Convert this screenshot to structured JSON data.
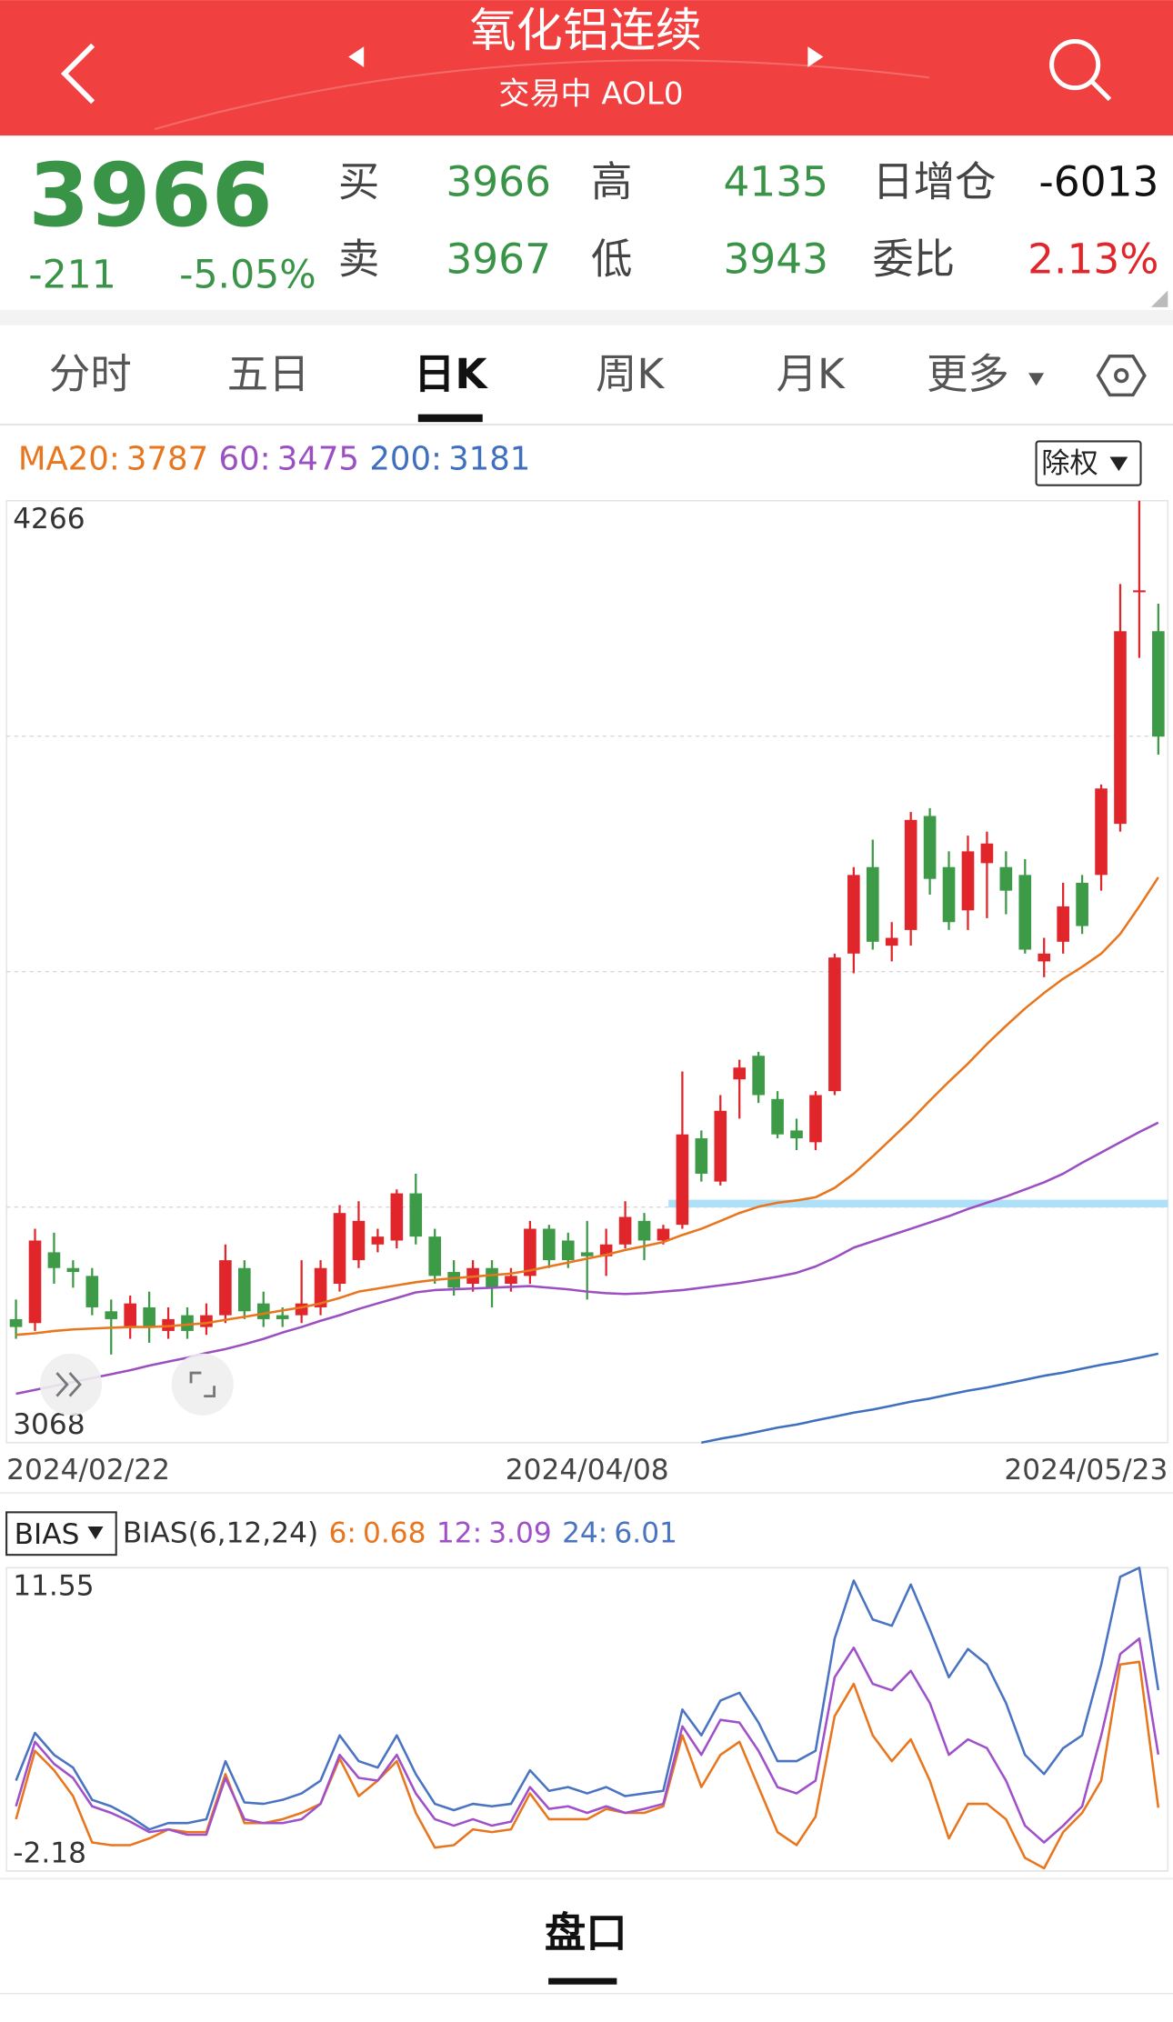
{
  "header": {
    "title": "氧化铝连续",
    "subtitle": "交易中 AOL0"
  },
  "quote": {
    "price": 3966,
    "change": -211,
    "change_pct": "-5.05%",
    "color": "#3a9447",
    "fields": [
      {
        "label": "买",
        "value": 3966,
        "color": "#3a9447"
      },
      {
        "label": "卖",
        "value": 3967,
        "color": "#3a9447"
      },
      {
        "label": "高",
        "value": 4135,
        "color": "#3a9447"
      },
      {
        "label": "低",
        "value": 3943,
        "color": "#3a9447"
      },
      {
        "label": "日增仓",
        "value": -6013,
        "color": "#111111"
      },
      {
        "label": "委比",
        "value": "2.13%",
        "color": "#e0262b"
      }
    ]
  },
  "tabs": [
    "分时",
    "五日",
    "日K",
    "周K",
    "月K",
    "更多"
  ],
  "active_tab": 2,
  "adjust_button": "除权",
  "chart_data": [
    {
      "type": "candlestick",
      "open": [
        3225,
        3220,
        3310,
        3290,
        3280,
        3235,
        3215,
        3240,
        3210,
        3230,
        3215,
        3230,
        3290,
        3245,
        3230,
        3230,
        3240,
        3270,
        3300,
        3320,
        3325,
        3385,
        3330,
        3285,
        3270,
        3290,
        3270,
        3280,
        3340,
        3325,
        3310,
        3305,
        3320,
        3350,
        3325,
        3345,
        3455,
        3400,
        3530,
        3560,
        3505,
        3465,
        3450,
        3515,
        3690,
        3800,
        3700,
        3720,
        3865,
        3800,
        3745,
        3805,
        3800,
        3790,
        3680,
        3705,
        3780,
        3790,
        3855,
        4150,
        4100
      ],
      "high": [
        3250,
        3340,
        3335,
        3300,
        3290,
        3250,
        3255,
        3260,
        3240,
        3240,
        3245,
        3320,
        3300,
        3260,
        3240,
        3300,
        3300,
        3370,
        3375,
        3340,
        3390,
        3410,
        3340,
        3300,
        3300,
        3300,
        3290,
        3350,
        3345,
        3335,
        3350,
        3340,
        3375,
        3360,
        3345,
        3540,
        3465,
        3510,
        3555,
        3565,
        3515,
        3480,
        3515,
        3690,
        3800,
        3835,
        3730,
        3870,
        3875,
        3820,
        3840,
        3845,
        3820,
        3810,
        3710,
        3780,
        3790,
        3905,
        4160,
        4266,
        4135
      ],
      "low": [
        3200,
        3210,
        3270,
        3265,
        3230,
        3180,
        3200,
        3195,
        3200,
        3200,
        3205,
        3220,
        3225,
        3215,
        3215,
        3220,
        3230,
        3260,
        3290,
        3310,
        3315,
        3320,
        3270,
        3255,
        3260,
        3240,
        3260,
        3270,
        3290,
        3290,
        3250,
        3280,
        3315,
        3300,
        3320,
        3340,
        3400,
        3395,
        3480,
        3500,
        3455,
        3440,
        3440,
        3510,
        3665,
        3695,
        3680,
        3700,
        3765,
        3720,
        3720,
        3735,
        3740,
        3690,
        3660,
        3690,
        3715,
        3770,
        3845,
        4066,
        3943
      ],
      "close": [
        3215,
        3325,
        3290,
        3285,
        3240,
        3225,
        3245,
        3215,
        3225,
        3210,
        3230,
        3300,
        3235,
        3225,
        3225,
        3245,
        3290,
        3360,
        3350,
        3330,
        3385,
        3330,
        3280,
        3265,
        3290,
        3265,
        3280,
        3340,
        3300,
        3300,
        3305,
        3320,
        3355,
        3325,
        3340,
        3460,
        3410,
        3490,
        3545,
        3510,
        3460,
        3455,
        3510,
        3685,
        3790,
        3705,
        3710,
        3860,
        3785,
        3730,
        3820,
        3830,
        3770,
        3695,
        3690,
        3750,
        3725,
        3900,
        4100,
        4152,
        3966
      ],
      "up_color": "#e0262b",
      "down_color": "#3d9a47",
      "series": [
        {
          "name": "MA20:",
          "color": "#e8761e",
          "values": [
            3205,
            3207,
            3210,
            3212,
            3213,
            3214,
            3215,
            3215,
            3216,
            3218,
            3220,
            3224,
            3228,
            3232,
            3236,
            3240,
            3245,
            3252,
            3260,
            3264,
            3268,
            3272,
            3275,
            3277,
            3279,
            3281,
            3283,
            3287,
            3292,
            3297,
            3302,
            3307,
            3313,
            3318,
            3323,
            3332,
            3340,
            3350,
            3360,
            3368,
            3373,
            3376,
            3380,
            3392,
            3410,
            3432,
            3455,
            3478,
            3503,
            3527,
            3550,
            3575,
            3598,
            3620,
            3640,
            3658,
            3673,
            3690,
            3715,
            3750,
            3787
          ]
        },
        {
          "name": "60:",
          "color": "#9b4fc0",
          "values": [
            3130,
            3135,
            3140,
            3145,
            3150,
            3155,
            3160,
            3166,
            3171,
            3176,
            3182,
            3187,
            3193,
            3200,
            3208,
            3215,
            3223,
            3230,
            3238,
            3245,
            3252,
            3259,
            3262,
            3263,
            3264,
            3265,
            3266,
            3267,
            3265,
            3263,
            3260,
            3258,
            3257,
            3258,
            3260,
            3262,
            3265,
            3268,
            3271,
            3275,
            3279,
            3284,
            3292,
            3303,
            3316,
            3324,
            3332,
            3340,
            3348,
            3356,
            3365,
            3373,
            3381,
            3390,
            3399,
            3410,
            3424,
            3437,
            3450,
            3463,
            3475
          ]
        },
        {
          "name": "200:",
          "color": "#3f6fbf",
          "values": [
            null,
            null,
            null,
            null,
            null,
            null,
            null,
            null,
            null,
            null,
            null,
            null,
            null,
            null,
            null,
            null,
            null,
            null,
            null,
            null,
            null,
            null,
            null,
            null,
            null,
            null,
            null,
            null,
            null,
            null,
            null,
            null,
            null,
            null,
            null,
            null,
            3068,
            3073,
            3077,
            3082,
            3087,
            3091,
            3096,
            3101,
            3106,
            3110,
            3115,
            3120,
            3124,
            3129,
            3134,
            3138,
            3143,
            3148,
            3153,
            3157,
            3162,
            3167,
            3171,
            3176,
            3181
          ]
        }
      ],
      "reference_line": {
        "value": 3372,
        "color": "#aee0f7"
      },
      "ylim": [
        3068,
        4266
      ],
      "yticks": [
        4266,
        3068
      ],
      "grid": true,
      "gridlines": [
        3966.5,
        3667,
        3367.5
      ],
      "xticks": [
        "2024/02/22",
        "2024/04/08",
        "2024/05/23"
      ]
    },
    {
      "type": "line",
      "selector": "BIAS",
      "indicator": "BIAS(6,12,24)",
      "series": [
        {
          "name": "6:",
          "color": "#e8761e",
          "values": [
            0.16,
            3.26,
            2.38,
            1.21,
            -0.89,
            -1.01,
            -1.01,
            -0.71,
            -0.3,
            -0.42,
            -0.42,
            2.21,
            -0.01,
            -0.01,
            0.16,
            0.45,
            0.86,
            2.91,
            1.21,
            1.91,
            2.79,
            0.45,
            -1.12,
            -1.01,
            -0.3,
            -0.42,
            -0.3,
            1.33,
            0.16,
            0.16,
            0.16,
            0.63,
            0.45,
            0.45,
            0.75,
            3.96,
            1.62,
            3.08,
            3.67,
            1.62,
            -0.42,
            -1.01,
            0.28,
            4.83,
            6.29,
            3.96,
            2.79,
            3.78,
            1.91,
            -0.71,
            0.86,
            0.86,
            0.16,
            -1.59,
            -2.06,
            -0.42,
            0.45,
            1.91,
            7.17,
            7.29,
            0.68
          ]
        },
        {
          "name": "12:",
          "color": "#a050c8",
          "values": [
            0.75,
            3.67,
            2.67,
            2.03,
            0.75,
            0.45,
            0.05,
            -0.42,
            -0.3,
            -0.54,
            -0.54,
            2.03,
            0.16,
            -0.01,
            -0.01,
            0.16,
            0.86,
            3.08,
            2.03,
            1.91,
            3.08,
            1.33,
            0.16,
            -0.13,
            0.16,
            -0.13,
            0.05,
            1.62,
            0.63,
            0.75,
            0.45,
            0.75,
            0.45,
            0.63,
            0.86,
            4.37,
            3.08,
            4.66,
            4.54,
            3.26,
            1.62,
            1.33,
            1.91,
            6.59,
            7.93,
            6.29,
            6.0,
            6.88,
            5.42,
            3.08,
            3.78,
            3.38,
            1.91,
            -0.13,
            -0.89,
            -0.13,
            0.75,
            3.96,
            7.64,
            8.34,
            3.09
          ]
        },
        {
          "name": "24:",
          "color": "#4a74c2",
          "values": [
            1.91,
            4.07,
            3.08,
            2.5,
            1.04,
            0.75,
            0.28,
            -0.3,
            -0.01,
            -0.01,
            0.16,
            2.79,
            0.92,
            0.86,
            1.04,
            1.33,
            1.91,
            3.96,
            2.79,
            2.5,
            3.96,
            2.21,
            0.86,
            0.57,
            0.86,
            0.75,
            0.86,
            2.38,
            1.45,
            1.62,
            1.33,
            1.62,
            1.21,
            1.33,
            1.45,
            5.13,
            3.96,
            5.54,
            5.89,
            4.54,
            2.79,
            2.79,
            3.26,
            8.34,
            10.97,
            9.21,
            8.92,
            10.79,
            8.75,
            6.59,
            7.87,
            7.17,
            5.42,
            3.08,
            2.21,
            3.38,
            3.96,
            7.17,
            11.14,
            11.55,
            6.01
          ]
        }
      ],
      "ylim": [
        -2.18,
        11.55
      ],
      "yticks": [
        11.55,
        -2.18
      ]
    }
  ],
  "footer_tab": "盘口"
}
